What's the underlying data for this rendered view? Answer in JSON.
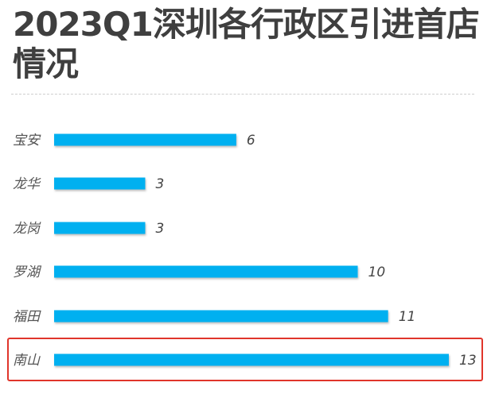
{
  "title": "2023Q1深圳各行政区引进首店情况",
  "chart_data": {
    "type": "bar",
    "orientation": "horizontal",
    "title": "2023Q1深圳各行政区引进首店情况",
    "categories": [
      "宝安",
      "龙华",
      "龙岗",
      "罗湖",
      "福田",
      "南山"
    ],
    "values": [
      6,
      3,
      3,
      10,
      11,
      13
    ],
    "xlim": [
      0,
      13
    ],
    "grid": false,
    "legend": "none",
    "highlighted_category": "南山",
    "colors": {
      "bar": "#00b0f0",
      "highlight_border": "#e0352b"
    }
  }
}
